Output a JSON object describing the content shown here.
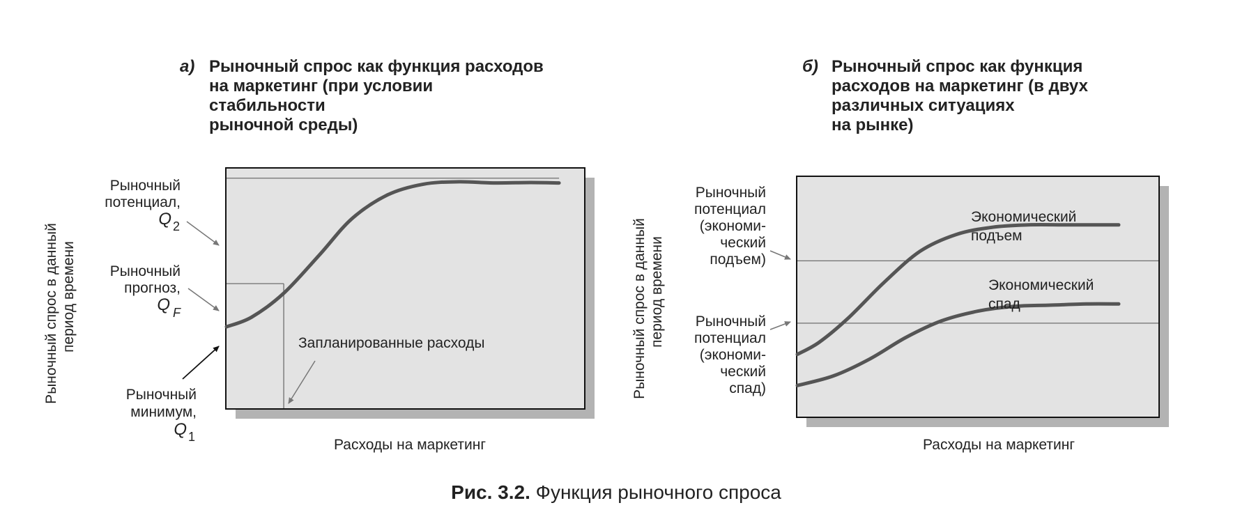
{
  "colors": {
    "plot_fill": "#e3e3e3",
    "plot_border": "#111111",
    "shadow": "#b3b3b3",
    "curve": "#555555",
    "ref_line": "#6e6e6e",
    "arrow": "#777777",
    "text": "#222222"
  },
  "caption": {
    "bold": "Рис. 3.2.",
    "text": " Функция рыночного спроса"
  },
  "chart_data": [
    {
      "type": "line",
      "panel_letter": "а)",
      "title_lines": [
        "Рыночный спрос как функция расходов",
        "на маркетинг (при условии",
        "стабильности",
        "рыночной среды)"
      ],
      "xlabel": "Расходы на маркетинг",
      "ylabel_lines": [
        "Рыночный спрос в данный",
        "период времени"
      ],
      "grid": false,
      "xlim": [
        0,
        1
      ],
      "ylim": [
        0,
        1
      ],
      "series": [
        {
          "x": [
            0,
            0.07,
            0.16,
            0.26,
            0.35,
            0.45,
            0.55,
            0.65,
            0.75,
            0.85,
            0.93
          ],
          "values": [
            0.34,
            0.38,
            0.48,
            0.64,
            0.79,
            0.89,
            0.935,
            0.945,
            0.94,
            0.942,
            0.94
          ]
        }
      ],
      "reference_levels": [
        {
          "y": 0.96,
          "x_end": 0.93,
          "label_lines": [
            "Рыночный",
            "потенциал,"
          ],
          "symbol": "Q",
          "sub": "2"
        },
        {
          "y": 0.52,
          "x_end": 0.16,
          "label_lines": [
            "Рыночный",
            "прогноз,"
          ],
          "symbol": "Q",
          "sub": "F"
        }
      ],
      "planned_spending": {
        "x": 0.16,
        "label": "Запланированные расходы"
      },
      "minimum_label": {
        "label_lines": [
          "Рыночный",
          "минимум,"
        ],
        "symbol": "Q",
        "sub": "1"
      }
    },
    {
      "type": "line",
      "panel_letter": "б)",
      "title_lines": [
        "Рыночный спрос как функция",
        "расходов на маркетинг (в двух",
        "различных ситуациях",
        "на рынке)"
      ],
      "xlabel": "Расходы на маркетинг",
      "ylabel_lines": [
        "Рыночный спрос в данный",
        "период времени"
      ],
      "grid": false,
      "xlim": [
        0,
        1
      ],
      "ylim": [
        0,
        1
      ],
      "series": [
        {
          "name": "Экономический подъем",
          "x": [
            0,
            0.06,
            0.14,
            0.24,
            0.34,
            0.44,
            0.54,
            0.64,
            0.74,
            0.84,
            0.89
          ],
          "values": [
            0.26,
            0.31,
            0.41,
            0.56,
            0.69,
            0.76,
            0.79,
            0.8,
            0.8,
            0.8,
            0.8
          ]
        },
        {
          "name": "Экономический спад",
          "x": [
            0,
            0.1,
            0.2,
            0.3,
            0.4,
            0.5,
            0.6,
            0.7,
            0.8,
            0.89
          ],
          "values": [
            0.13,
            0.17,
            0.24,
            0.33,
            0.4,
            0.44,
            0.46,
            0.465,
            0.47,
            0.47
          ]
        }
      ],
      "reference_levels": [
        {
          "y": 0.65,
          "label_lines": [
            "Рыночный",
            "потенциал",
            "(экономи-",
            "ческий",
            "подъем)"
          ]
        },
        {
          "y": 0.39,
          "label_lines": [
            "Рыночный",
            "потенциал",
            "(экономи-",
            "ческий",
            "спад)"
          ]
        }
      ],
      "series_labels": [
        {
          "lines": [
            "Экономический",
            "подъем"
          ]
        },
        {
          "lines": [
            "Экономический",
            "спад"
          ]
        }
      ]
    }
  ]
}
